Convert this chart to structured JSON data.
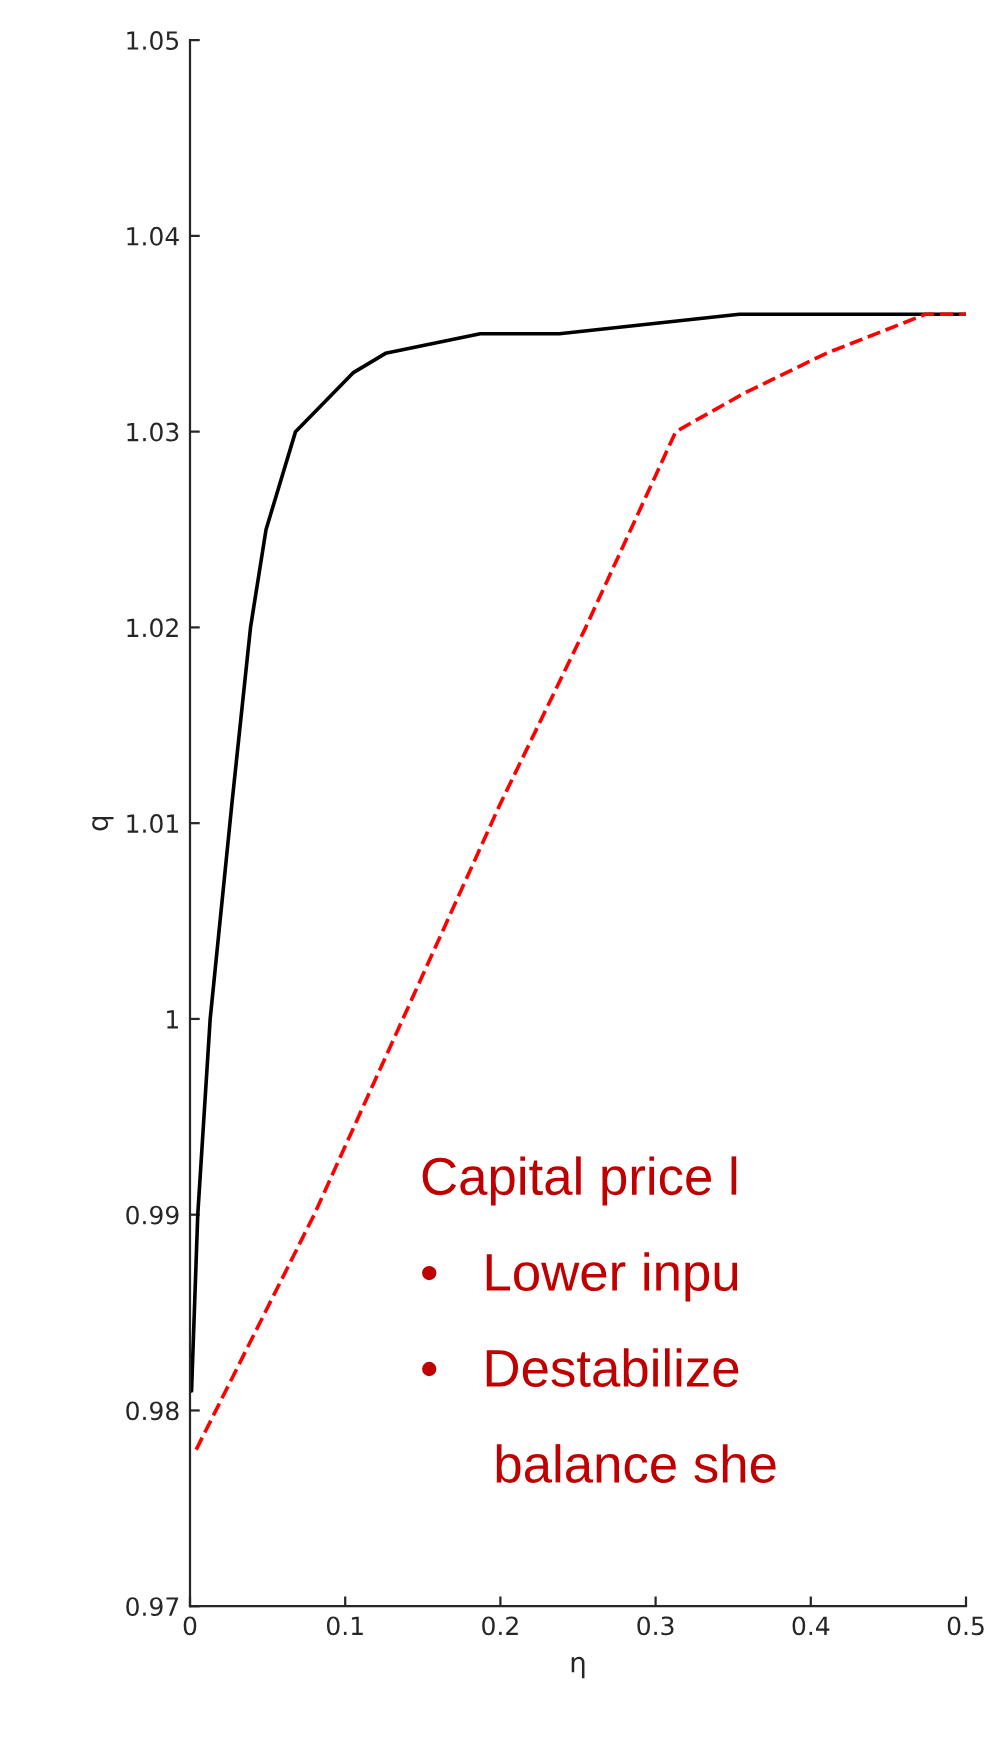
{
  "chart_data": {
    "type": "line",
    "xlabel": "η",
    "ylabel": "q",
    "xlim": [
      0,
      0.5
    ],
    "ylim": [
      0.97,
      1.05
    ],
    "xticks": [
      0,
      0.1,
      0.2,
      0.3,
      0.4,
      {
        "value": 0.5,
        "label": "0.5"
      }
    ],
    "yticks": [
      0.97,
      0.98,
      0.99,
      1,
      1.01,
      1.02,
      1.03,
      1.04,
      1.05
    ],
    "series": [
      {
        "color": "#000000",
        "line_style": "solid",
        "x": [
          0.001,
          0.005,
          0.013,
          0.027,
          0.039,
          0.049,
          0.068,
          0.105,
          0.126,
          0.187,
          0.238,
          0.354,
          0.5
        ],
        "values": [
          0.981,
          0.99,
          1.0,
          1.011,
          1.02,
          1.025,
          1.03,
          1.033,
          1.034,
          1.035,
          1.035,
          1.036,
          1.036
        ]
      },
      {
        "color": "#ff0000",
        "line_style": "dashed",
        "x": [
          0.004,
          0.08,
          0.2,
          0.255,
          0.313,
          0.358,
          0.41,
          0.474,
          0.5
        ],
        "values": [
          0.978,
          0.99,
          1.011,
          1.02,
          1.03,
          1.032,
          1.034,
          1.036,
          1.036
        ]
      }
    ],
    "annotations": [
      "Capital price l",
      "•   Lower inpu",
      "•   Destabilize",
      "     balance she"
    ]
  }
}
